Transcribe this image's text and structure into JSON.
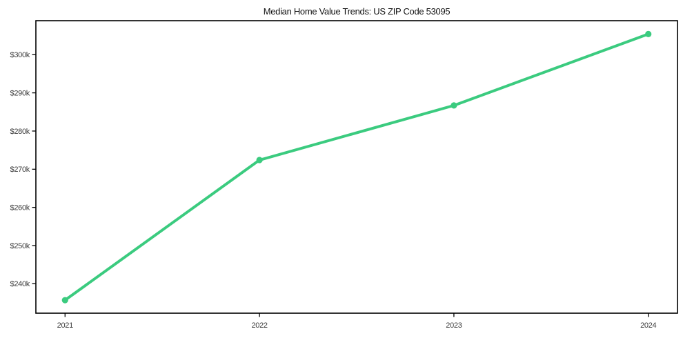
{
  "chart_data": {
    "type": "line",
    "title": "Median Home Value Trends: US ZIP Code 53095",
    "x": [
      2021,
      2022,
      2023,
      2024
    ],
    "xtick_labels": [
      "2021",
      "2022",
      "2023",
      "2024"
    ],
    "series": [
      {
        "name": "Median Home Value",
        "values": [
          235700,
          272400,
          286700,
          305400
        ]
      }
    ],
    "yticks": [
      240000,
      250000,
      260000,
      270000,
      280000,
      290000,
      300000
    ],
    "ytick_labels": [
      "$240k",
      "$250k",
      "$260k",
      "$270k",
      "$280k",
      "$290k",
      "$300k"
    ],
    "xlim": [
      2020.85,
      2024.15
    ],
    "ylim": [
      232300,
      308900
    ],
    "grid": false,
    "legend": false,
    "marker": "circle",
    "line_width": 4,
    "line_color": "#3bcb7f",
    "axis_color": "#000000",
    "text_color": "#3a3a3a",
    "background": "#ffffff"
  }
}
